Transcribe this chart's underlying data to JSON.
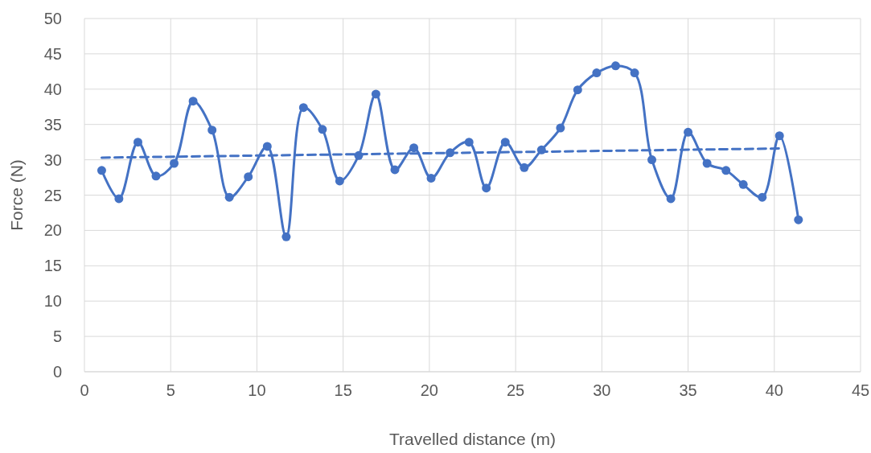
{
  "chart_data": {
    "type": "line",
    "xlabel": "Travelled distance (m)",
    "ylabel": "Force (N)",
    "xlim": [
      0,
      45
    ],
    "xticks": [
      0,
      5,
      10,
      15,
      20,
      25,
      30,
      35,
      40,
      45
    ],
    "ylim": [
      0,
      50
    ],
    "yticks": [
      0,
      5,
      10,
      15,
      20,
      25,
      30,
      35,
      40,
      45,
      50
    ],
    "grid": true,
    "series": [
      {
        "color": "#4472c4",
        "marker": "circle",
        "line_style": "solid",
        "x": [
          1.0,
          2.0,
          3.1,
          4.15,
          5.2,
          6.3,
          7.4,
          8.4,
          9.5,
          10.6,
          11.7,
          12.7,
          13.8,
          14.8,
          15.9,
          16.9,
          18.0,
          19.1,
          20.1,
          21.2,
          22.3,
          23.3,
          24.4,
          25.5,
          26.5,
          27.6,
          28.6,
          29.7,
          30.8,
          31.9,
          32.9,
          34.0,
          35.0,
          36.1,
          37.2,
          38.2,
          39.3,
          40.3,
          41.4
        ],
        "values": [
          28.5,
          24.5,
          32.5,
          27.7,
          29.5,
          38.3,
          34.2,
          24.7,
          27.6,
          31.9,
          19.1,
          37.4,
          34.3,
          27.0,
          30.6,
          39.3,
          28.6,
          31.7,
          27.4,
          31.0,
          32.5,
          26.0,
          32.5,
          28.9,
          31.4,
          34.5,
          39.9,
          42.3,
          43.3,
          42.3,
          30.0,
          24.5,
          33.9,
          29.5,
          28.5,
          26.5,
          24.7,
          33.4,
          21.5
        ]
      },
      {
        "color": "#4472c4",
        "marker": "none",
        "line_style": "dashed",
        "x": [
          1.0,
          40.3
        ],
        "values": [
          30.3,
          31.6
        ]
      }
    ]
  }
}
